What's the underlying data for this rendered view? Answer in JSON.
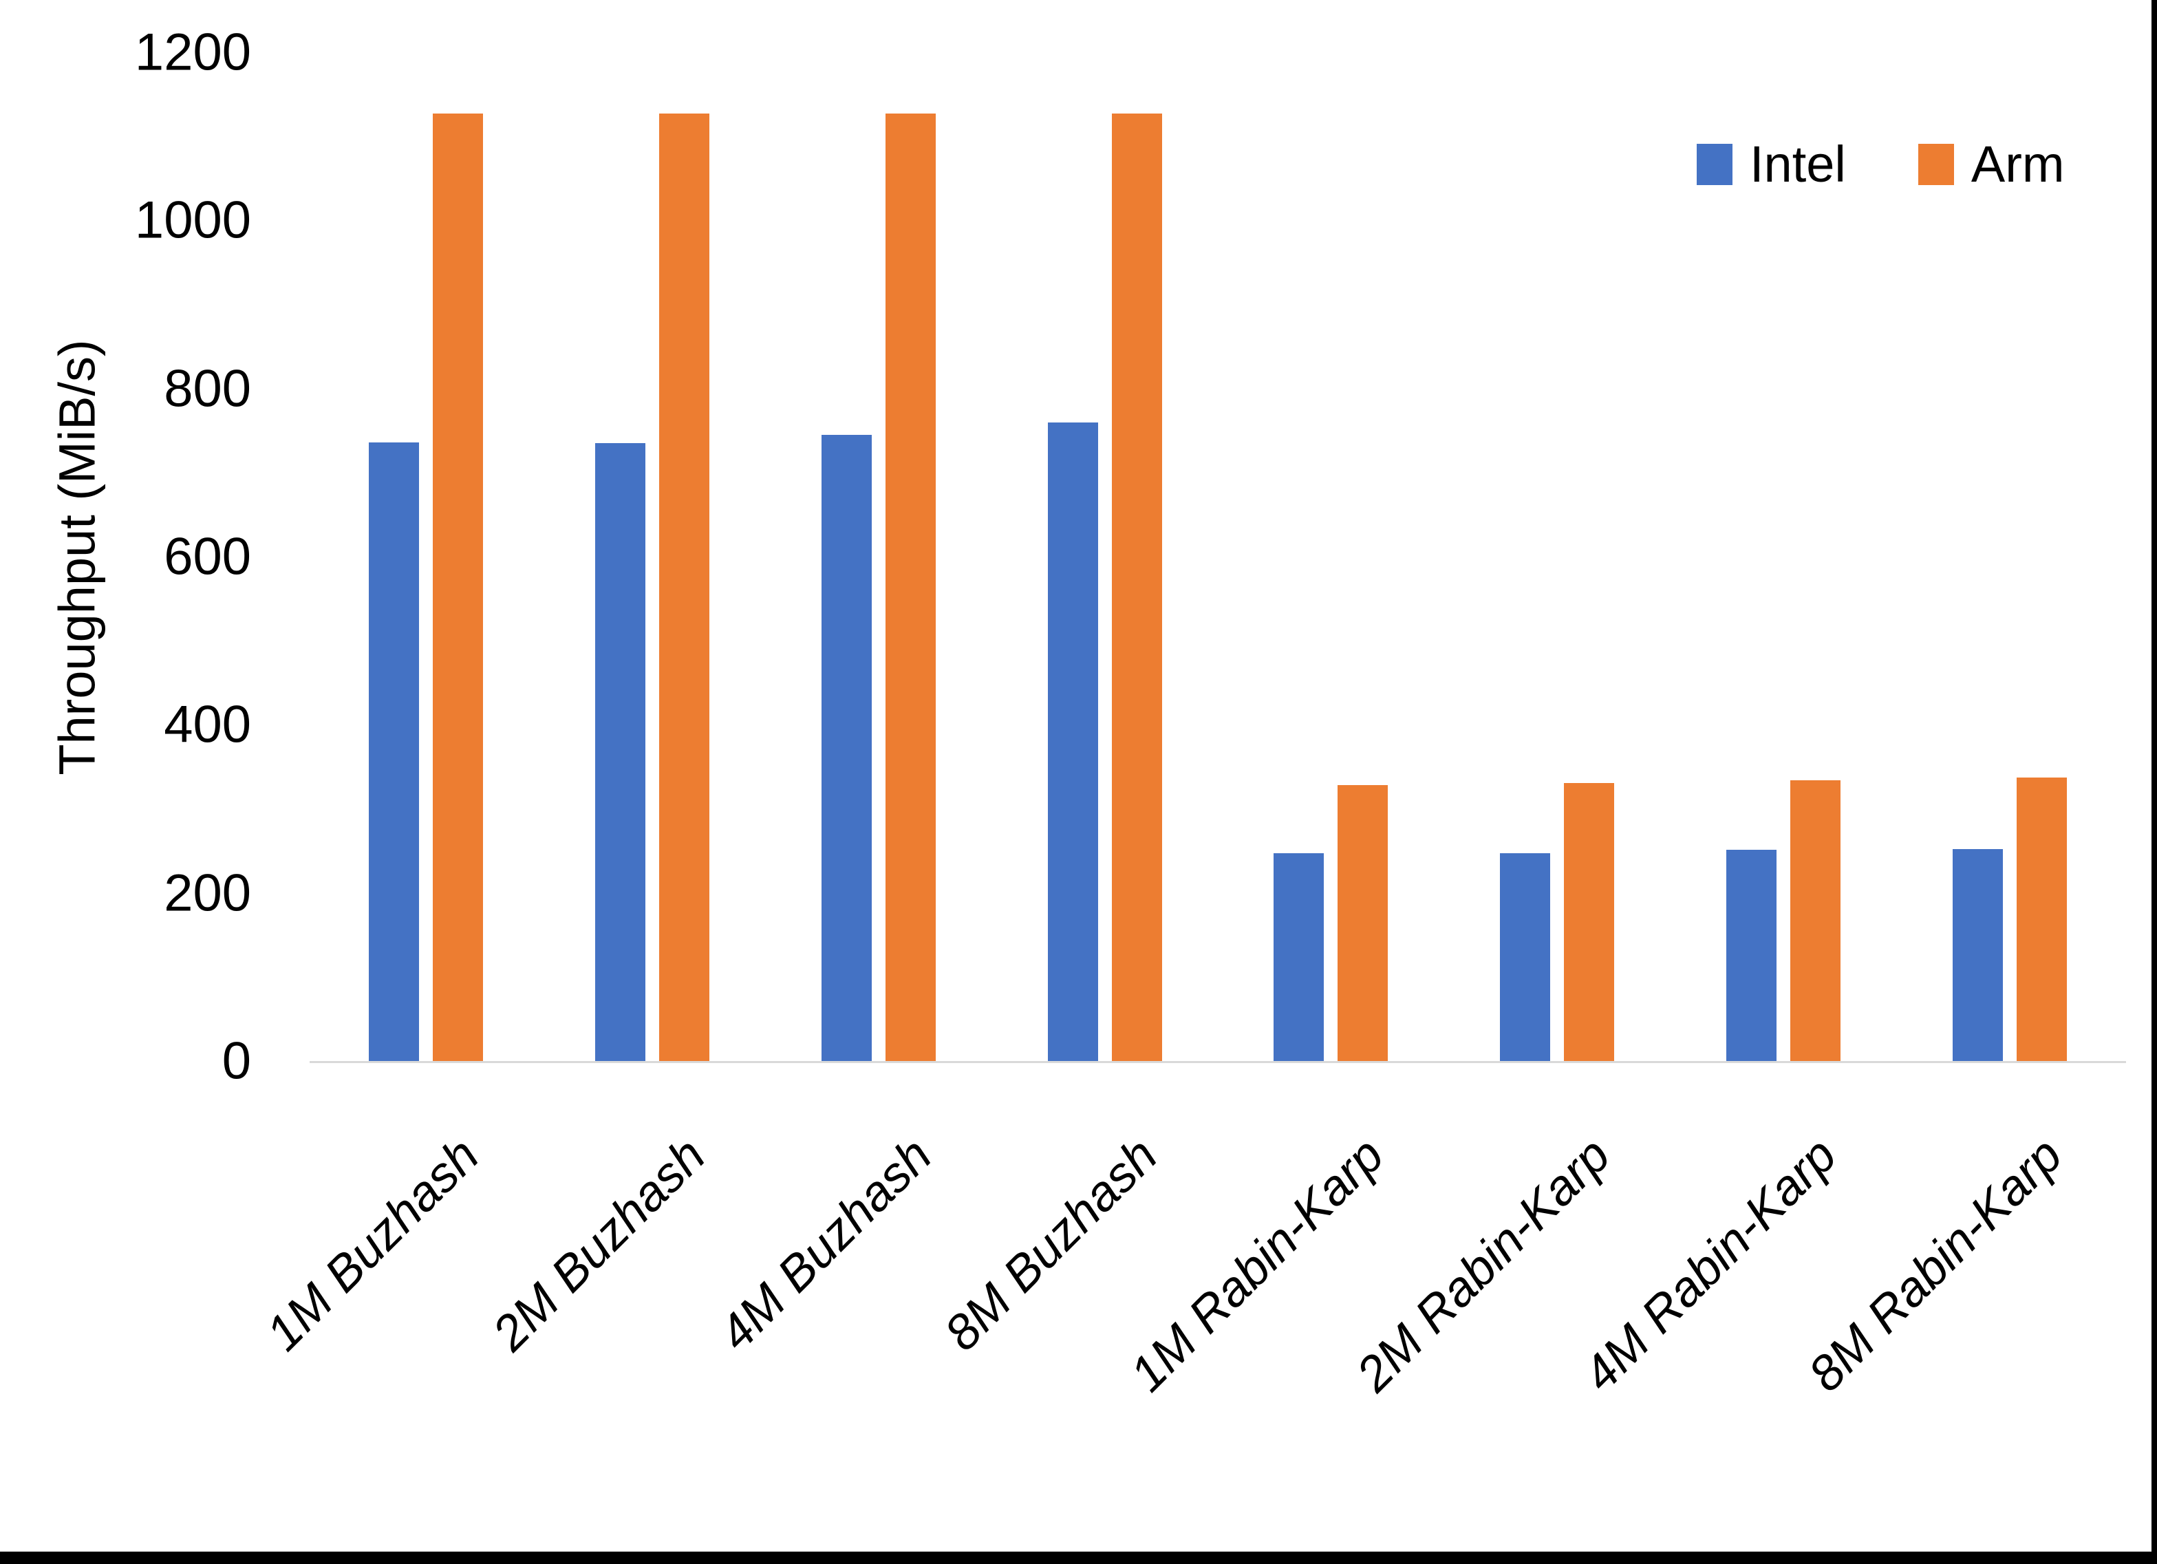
{
  "chart_data": {
    "type": "bar",
    "title": "",
    "ylabel": "Throughput (MiB/s)",
    "xlabel": "",
    "ylim": [
      0,
      1200
    ],
    "yticks": [
      0,
      200,
      400,
      600,
      800,
      1000,
      1200
    ],
    "grid": false,
    "legend_position": "top-right",
    "categories": [
      "1M Buzhash",
      "2M Buzhash",
      "4M Buzhash",
      "8M Buzhash",
      "1M Rabin-Karp",
      "2M Rabin-Karp",
      "4M Rabin-Karp",
      "8M Rabin-Karp"
    ],
    "series": [
      {
        "name": "Intel",
        "color": "#4472C4",
        "values": [
          736,
          735,
          745,
          760,
          247,
          247,
          251,
          252
        ]
      },
      {
        "name": "Arm",
        "color": "#ED7D31",
        "values": [
          1127,
          1127,
          1127,
          1127,
          328,
          331,
          334,
          337
        ]
      }
    ]
  },
  "legend": {
    "items": [
      {
        "label": "Intel",
        "color": "#4472C4"
      },
      {
        "label": "Arm",
        "color": "#ED7D31"
      }
    ]
  },
  "colors": {
    "background": "#FFFFFF",
    "axis_line": "#D9D9D9",
    "text": "#000000",
    "screen_edge": "#000000"
  }
}
